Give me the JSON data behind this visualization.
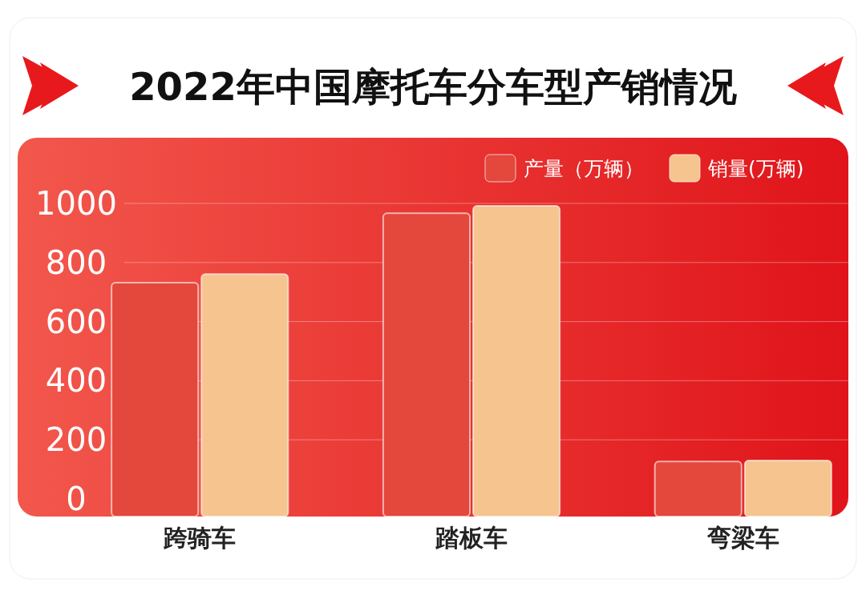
{
  "chart_data": {
    "type": "bar",
    "title": "2022年中国摩托车分车型产销情况",
    "categories": [
      "跨骑车",
      "踏板车",
      "弯梁车"
    ],
    "series": [
      {
        "name": "产量（万辆）",
        "color": "#e4473b",
        "values": [
          732,
          967,
          127
        ]
      },
      {
        "name": "销量(万辆)",
        "color": "#f6c48e",
        "values": [
          761,
          992,
          130
        ]
      }
    ],
    "ylim": [
      0,
      1000
    ],
    "yticks": [
      0,
      200,
      400,
      600,
      800,
      1000
    ],
    "grid": "y",
    "legend": "top right"
  }
}
